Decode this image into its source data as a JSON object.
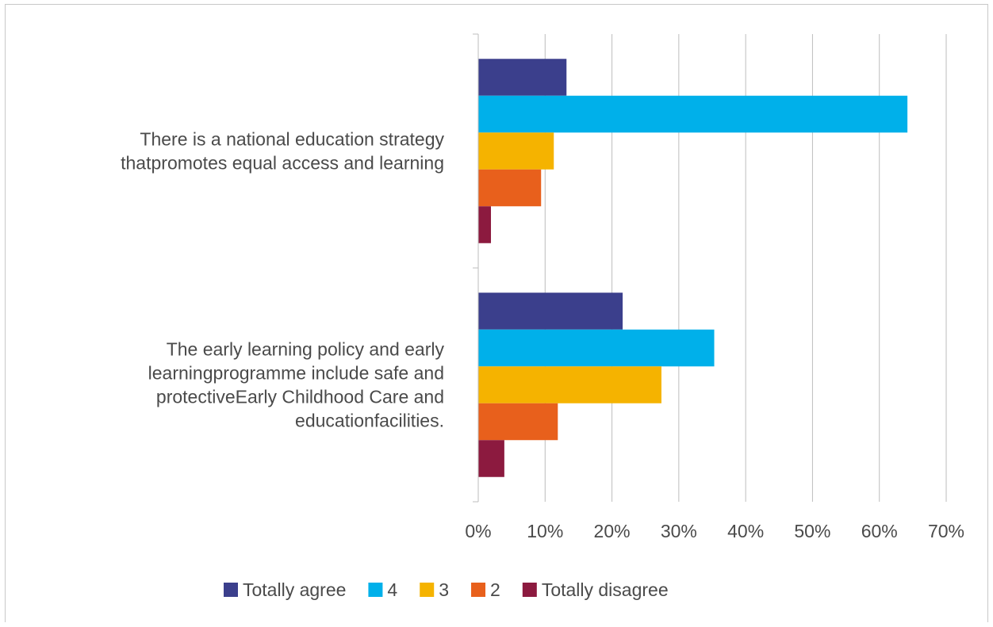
{
  "chart_data": {
    "type": "bar",
    "orientation": "horizontal",
    "categories": [
      "There is a national education strategy thatpromotes equal access and learning",
      "The early learning policy and early learningprogramme include safe and protectiveEarly Childhood Care and educationfacilities."
    ],
    "category_lines": [
      [
        "There is a national education strategy",
        "thatpromotes equal access and learning"
      ],
      [
        "The early learning policy and early",
        "learningprogramme include safe and",
        "protectiveEarly Childhood Care and",
        "educationfacilities."
      ]
    ],
    "series": [
      {
        "name": "Totally agree",
        "color": "#3b3f8c",
        "values": [
          13.2,
          21.6
        ]
      },
      {
        "name": "4",
        "color": "#00b0ea",
        "values": [
          64.2,
          35.3
        ]
      },
      {
        "name": "3",
        "color": "#f5b300",
        "values": [
          11.3,
          27.4
        ]
      },
      {
        "name": "2",
        "color": "#e8601c",
        "values": [
          9.4,
          11.9
        ]
      },
      {
        "name": "Totally disagree",
        "color": "#8c1a3f",
        "values": [
          1.9,
          3.9
        ]
      }
    ],
    "xlim": [
      0,
      70
    ],
    "xticks": [
      0,
      10,
      20,
      30,
      40,
      50,
      60,
      70
    ],
    "xtick_labels": [
      "0%",
      "10%",
      "20%",
      "30%",
      "40%",
      "50%",
      "60%",
      "70%"
    ],
    "grid": true,
    "legend_position": "bottom"
  }
}
